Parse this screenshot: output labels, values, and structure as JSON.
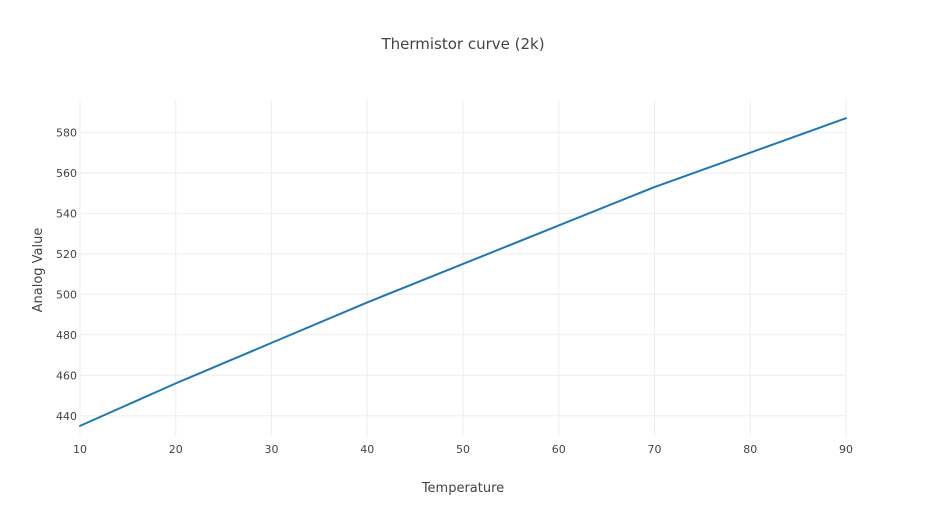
{
  "chart_data": {
    "type": "line",
    "title": "Thermistor curve (2k)",
    "xlabel": "Temperature",
    "ylabel": "Analog Value",
    "xlim": [
      10,
      90
    ],
    "ylim": [
      430,
      596
    ],
    "xticks": [
      10,
      20,
      30,
      40,
      50,
      60,
      70,
      80,
      90
    ],
    "yticks": [
      440,
      460,
      480,
      500,
      520,
      540,
      560,
      580
    ],
    "grid": true,
    "series": [
      {
        "color": "#1f77b4",
        "x": [
          10,
          20,
          30,
          40,
          50,
          60,
          70,
          80,
          90
        ],
        "y": [
          435,
          456,
          476,
          496,
          515,
          534,
          553,
          570,
          587
        ]
      }
    ]
  }
}
